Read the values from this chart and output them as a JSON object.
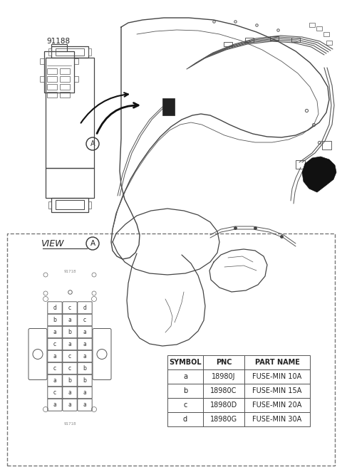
{
  "bg_color": "#ffffff",
  "part_number": "91188",
  "view_label": "VIEW",
  "circle_label": "A",
  "fuse_rows": [
    [
      "d",
      "c",
      "d"
    ],
    [
      "b",
      "a",
      "c"
    ],
    [
      "a",
      "b",
      "a"
    ],
    [
      "c",
      "a",
      "a"
    ],
    [
      "a",
      "c",
      "a"
    ],
    [
      "c",
      "c",
      "b"
    ],
    [
      "a",
      "b",
      "b"
    ],
    [
      "c",
      "a",
      "a"
    ],
    [
      "a",
      "a",
      "a"
    ]
  ],
  "table_headers": [
    "SYMBOL",
    "PNC",
    "PART NAME"
  ],
  "table_rows": [
    [
      "a",
      "18980J",
      "FUSE-MIN 10A"
    ],
    [
      "b",
      "18980C",
      "FUSE-MIN 15A"
    ],
    [
      "c",
      "18980D",
      "FUSE-MIN 20A"
    ],
    [
      "d",
      "18980G",
      "FUSE-MIN 30A"
    ]
  ],
  "line_color": "#333333",
  "text_color": "#222222"
}
